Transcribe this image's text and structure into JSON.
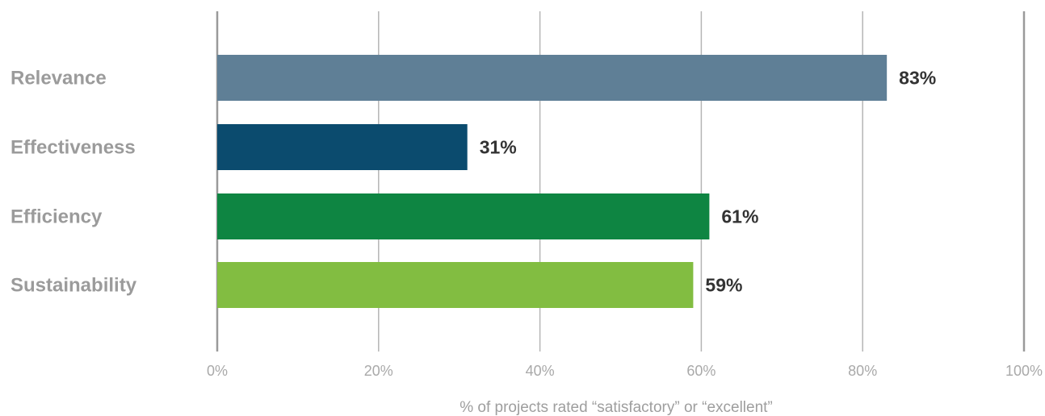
{
  "chart_data": {
    "type": "bar",
    "orientation": "horizontal",
    "categories": [
      "Relevance",
      "Effectiveness",
      "Efficiency",
      "Sustainability"
    ],
    "values": [
      83,
      31,
      61,
      59
    ],
    "value_labels": [
      "83%",
      "31%",
      "61%",
      "59%"
    ],
    "colors": [
      "#5f7f96",
      "#0b4b6e",
      "#0e8542",
      "#82bd41"
    ],
    "xlim": [
      0,
      100
    ],
    "xticks": [
      0,
      20,
      40,
      60,
      80,
      100
    ],
    "xtick_labels": [
      "0%",
      "20%",
      "40%",
      "60%",
      "80%",
      "100%"
    ],
    "xlabel": "% of projects rated “satisfactory” or “excellent”",
    "grid": true
  }
}
